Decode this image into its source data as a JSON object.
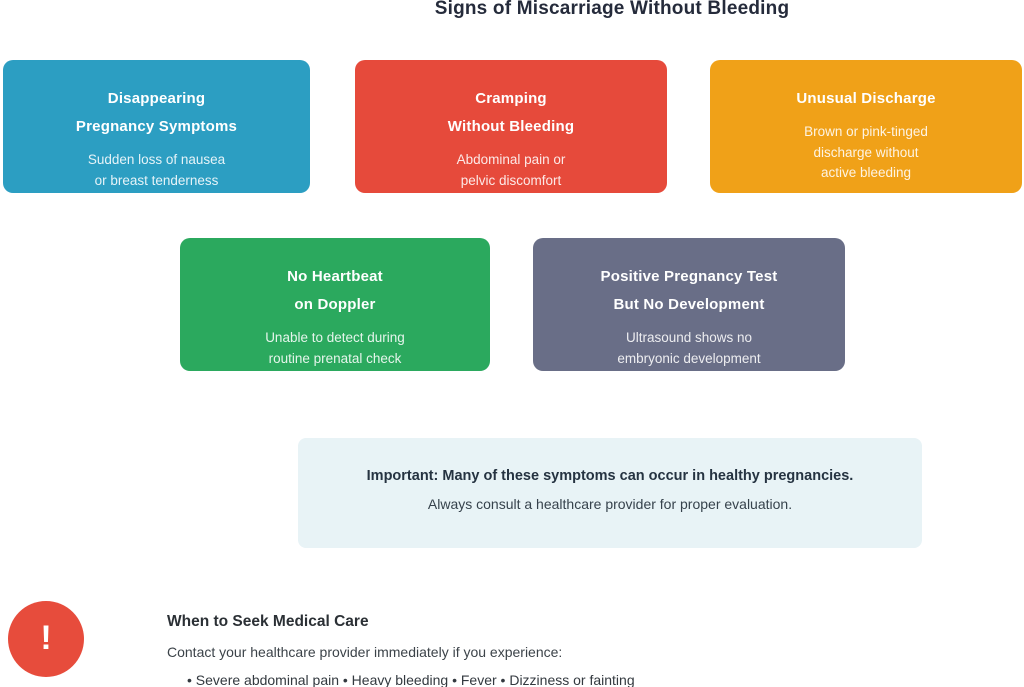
{
  "page": {
    "title": "Signs of Miscarriage Without Bleeding"
  },
  "cards": [
    {
      "id": "disappearing-pregnancy-symptoms",
      "color": "#2C9EC2",
      "title_lines": [
        "Disappearing",
        "Pregnancy Symptoms"
      ],
      "subtitle_lines": [
        "Sudden loss of nausea",
        "or breast tenderness"
      ]
    },
    {
      "id": "cramping-without-bleeding",
      "color": "#E64A3B",
      "title_lines": [
        "Cramping",
        "Without Bleeding"
      ],
      "subtitle_lines": [
        "Abdominal pain or",
        "pelvic discomfort"
      ]
    },
    {
      "id": "unusual-discharge",
      "color": "#F0A118",
      "title_lines": [
        "Unusual Discharge"
      ],
      "subtitle_lines": [
        "Brown or pink-tinged",
        "discharge without",
        "active bleeding"
      ]
    },
    {
      "id": "no-heartbeat-on-doppler",
      "color": "#2BA95E",
      "title_lines": [
        "No Heartbeat",
        "on Doppler"
      ],
      "subtitle_lines": [
        "Unable to detect during",
        "routine prenatal check"
      ]
    },
    {
      "id": "positive-test-no-development",
      "color": "#696E87",
      "title_lines": [
        "Positive Pregnancy Test",
        "But No Development"
      ],
      "subtitle_lines": [
        "Ultrasound shows no",
        "embryonic development"
      ]
    }
  ],
  "important_note": {
    "background_color": "#E8F3F6",
    "bold_line": "Important: Many of these symptoms can occur in healthy pregnancies.",
    "regular_line": "Always consult a healthcare provider for proper evaluation."
  },
  "seek_care": {
    "icon": "!",
    "icon_color": "#E74C3C",
    "heading": "When to Seek Medical Care",
    "intro": "Contact your healthcare provider immediately if you experience:",
    "symptoms": "• Severe abdominal pain • Heavy bleeding • Fever • Dizziness or fainting"
  }
}
